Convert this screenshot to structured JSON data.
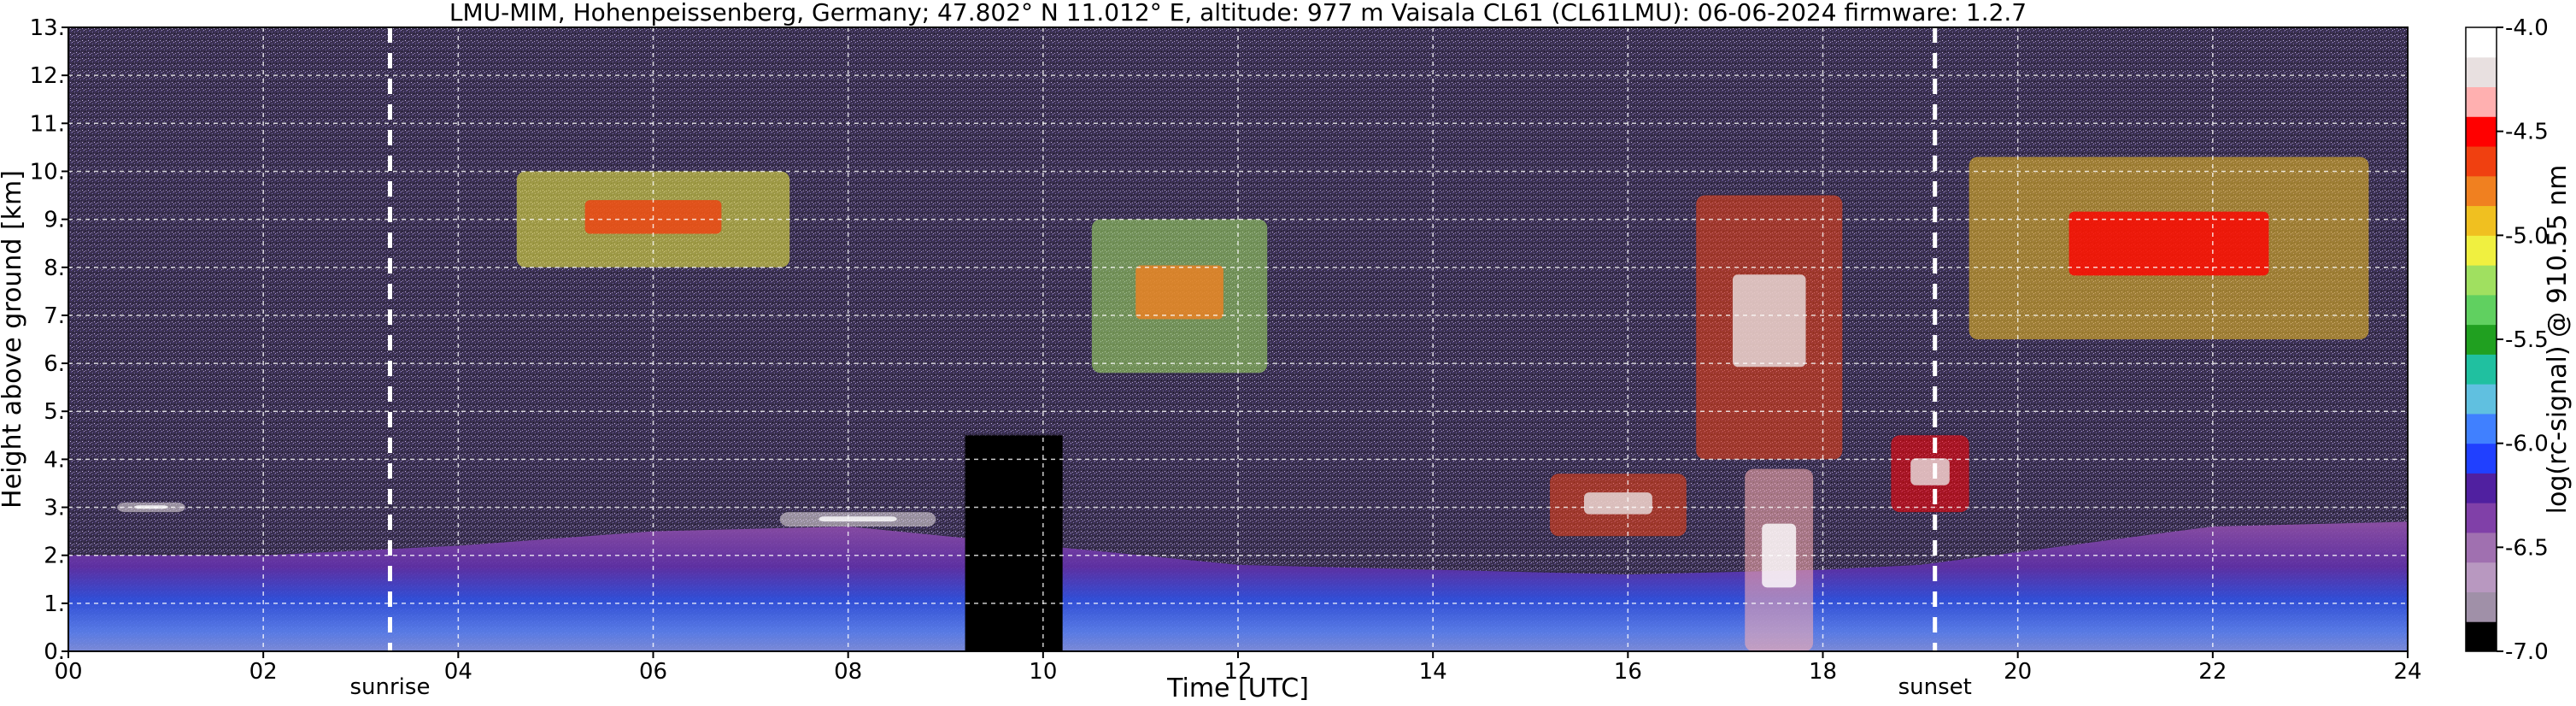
{
  "chart_data": {
    "type": "heatmap",
    "title": "LMU-MIM, Hohenpeissenberg, Germany; 47.802° N 11.012° E, altitude: 977 m    Vaisala CL61 (CL61LMU): 06-06-2024    firmware: 1.2.7",
    "xlabel": "Time [UTC]",
    "ylabel": "Height above ground [km]",
    "xlim": [
      0,
      24
    ],
    "ylim": [
      0,
      13
    ],
    "x_ticks": [
      "00",
      "02",
      "04",
      "06",
      "08",
      "10",
      "12",
      "14",
      "16",
      "18",
      "20",
      "22",
      "24"
    ],
    "y_ticks": [
      "0.",
      "1.",
      "2.",
      "3.",
      "4.",
      "5.",
      "6.",
      "7.",
      "8.",
      "9.",
      "10.",
      "11.",
      "12.",
      "13."
    ],
    "grid": true,
    "colorbar": {
      "label": "log(rc-signal) @ 910.55 nm",
      "range": [
        -7.0,
        -4.0
      ],
      "ticks": [
        "-4.0",
        "-4.5",
        "-5.0",
        "-5.5",
        "-6.0",
        "-6.5",
        "-7.0"
      ],
      "colors": [
        "#000000",
        "#a090a8",
        "#b898c0",
        "#a070b0",
        "#8040a8",
        "#5020a0",
        "#2040ff",
        "#4080ff",
        "#60c0e0",
        "#20c0a0",
        "#20a020",
        "#60d060",
        "#a0e060",
        "#f0f040",
        "#f0c020",
        "#f08020",
        "#f04010",
        "#ff0000",
        "#ffb0b0",
        "#e8e0e0",
        "#ffffff"
      ]
    },
    "events": [
      {
        "name": "sunrise",
        "x": 3.3
      },
      {
        "name": "sunset",
        "x": 19.15
      }
    ],
    "no_data_intervals": [
      [
        9.2,
        10.2
      ]
    ],
    "layers": [
      {
        "name": "aerosol_layer",
        "x": [
          0,
          24
        ],
        "top_km": [
          2.0,
          2.0,
          2.2,
          2.5,
          2.6,
          2.4,
          1.8,
          1.7,
          1.6,
          1.7,
          1.8,
          2.6,
          2.7
        ],
        "x_at": [
          0,
          2,
          4,
          6,
          8,
          9,
          12,
          14,
          16,
          18,
          19,
          22,
          24
        ]
      }
    ],
    "cloud_features": [
      {
        "x_range": [
          4.6,
          7.4
        ],
        "height_km": [
          8.0,
          10.0
        ],
        "level": -5.0
      },
      {
        "x_range": [
          10.5,
          12.3
        ],
        "height_km": [
          5.8,
          9.0
        ],
        "level": -5.2
      },
      {
        "x_range": [
          16.7,
          18.2
        ],
        "height_km": [
          4.0,
          9.5
        ],
        "level": -4.6
      },
      {
        "x_range": [
          19.5,
          23.6
        ],
        "height_km": [
          6.5,
          10.3
        ],
        "level": -4.9
      },
      {
        "x_range": [
          0.5,
          1.2
        ],
        "height_km": [
          2.9,
          3.1
        ],
        "level": -4.2
      },
      {
        "x_range": [
          7.3,
          8.9
        ],
        "height_km": [
          2.6,
          2.9
        ],
        "level": -4.2
      },
      {
        "x_range": [
          15.2,
          16.6
        ],
        "height_km": [
          2.4,
          3.7
        ],
        "level": -4.6
      },
      {
        "x_range": [
          17.2,
          17.9
        ],
        "height_km": [
          0.0,
          3.8
        ],
        "level": -4.3
      },
      {
        "x_range": [
          18.7,
          19.5
        ],
        "height_km": [
          2.9,
          4.5
        ],
        "level": -4.5
      }
    ]
  }
}
